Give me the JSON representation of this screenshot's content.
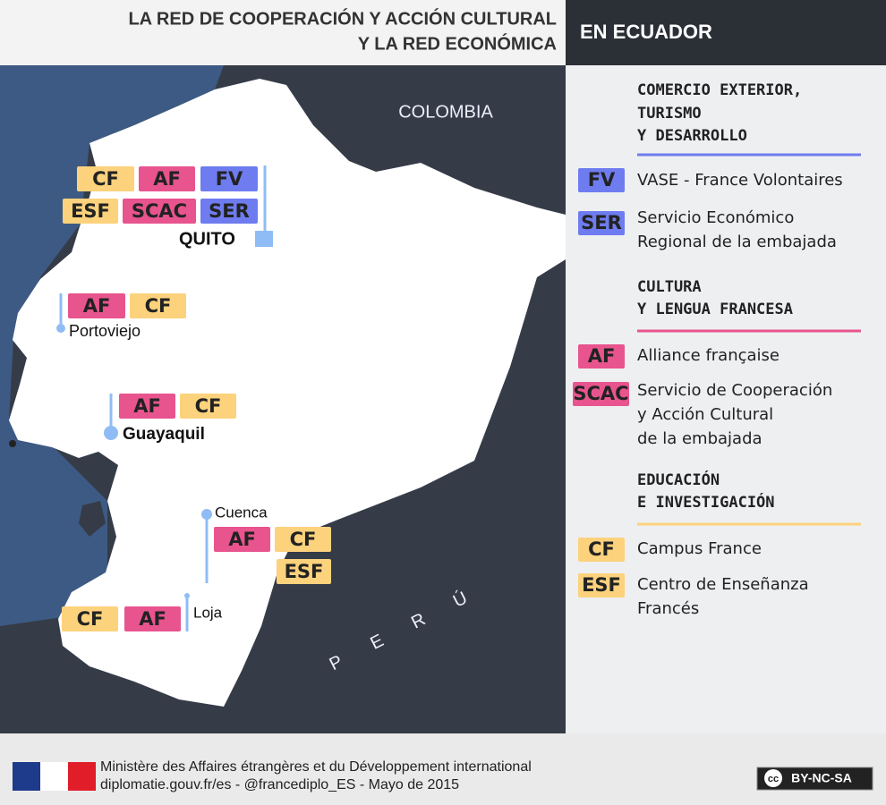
{
  "header": {
    "title_lines": [
      "LA RED DE COOPERACIÓN Y ACCIÓN CULTURAL",
      "Y LA RED ECONÓMICA"
    ],
    "tag": "EN ECUADOR"
  },
  "map": {
    "countries": [
      "COLOMBIA",
      "PERÚ"
    ],
    "cities": [
      {
        "name": "QUITO",
        "badges": [
          "CF",
          "AF",
          "FV",
          "ESF",
          "SCAC",
          "SER"
        ]
      },
      {
        "name": "Portoviejo",
        "badges": [
          "AF",
          "CF"
        ]
      },
      {
        "name": "Guayaquil",
        "badges": [
          "AF",
          "CF"
        ]
      },
      {
        "name": "Cuenca",
        "badges": [
          "AF",
          "CF",
          "ESF"
        ]
      },
      {
        "name": "Loja",
        "badges": [
          "CF",
          "AF"
        ]
      }
    ]
  },
  "legend": {
    "sections": [
      {
        "title_lines": [
          "COMERCIO EXTERIOR,",
          "TURISMO",
          "Y DESARROLLO"
        ],
        "color": "#6e7cf0",
        "items": [
          {
            "code": "FV",
            "label_lines": [
              "VASE - France Volontaires"
            ]
          },
          {
            "code": "SER",
            "label_lines": [
              "Servicio Económico",
              "Regional de la embajada"
            ]
          }
        ]
      },
      {
        "title_lines": [
          "CULTURA",
          "Y LENGUA FRANCESA"
        ],
        "color": "#e8548e",
        "items": [
          {
            "code": "AF",
            "label_lines": [
              "Alliance française"
            ]
          },
          {
            "code": "SCAC",
            "label_lines": [
              "Servicio de Cooperación",
              "y Acción Cultural",
              "de la embajada"
            ]
          }
        ]
      },
      {
        "title_lines": [
          "EDUCACIÓN",
          "E INVESTIGACIÓN"
        ],
        "color": "#fcd27c",
        "items": [
          {
            "code": "CF",
            "label_lines": [
              "Campus France"
            ]
          },
          {
            "code": "ESF",
            "label_lines": [
              "Centro de Enseñanza",
              "Francés"
            ]
          }
        ]
      }
    ]
  },
  "footer": {
    "lines": [
      "Ministère des Affaires étrangères et du Développement international",
      "diplomatie.gouv.fr/es - @francediplo_ES - Mayo de 2015"
    ],
    "license": {
      "icon": "cc",
      "text": "BY-NC-SA"
    }
  }
}
